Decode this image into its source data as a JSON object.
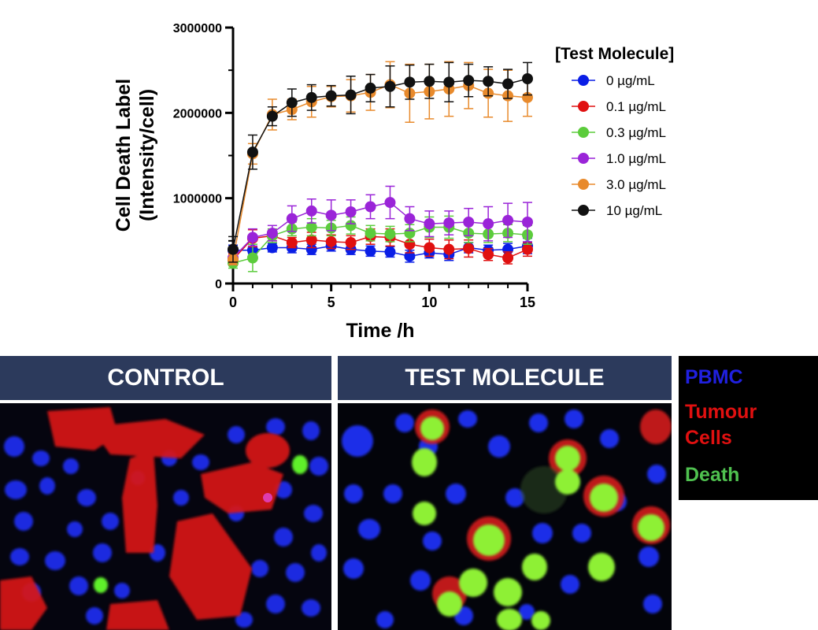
{
  "chart_data": {
    "type": "line",
    "xlabel": "Time /h",
    "ylabel_line1": "Cell Death Label",
    "ylabel_line2": "(Intensity/cell)",
    "xlim": [
      0,
      15
    ],
    "ylim": [
      0,
      3000000
    ],
    "xticks": [
      0,
      5,
      10,
      15
    ],
    "yticks": [
      0,
      1000000,
      2000000,
      3000000
    ],
    "legend_title": "[Test Molecule]",
    "legend_position": "right",
    "grid": false,
    "x": [
      0,
      1,
      2,
      3,
      4,
      5,
      6,
      7,
      8,
      9,
      10,
      11,
      12,
      13,
      14,
      15
    ],
    "series": [
      {
        "name": "0 µg/mL",
        "color": "#0a1ee6",
        "values": [
          390000,
          390000,
          420000,
          420000,
          400000,
          440000,
          400000,
          380000,
          370000,
          320000,
          360000,
          340000,
          420000,
          390000,
          400000,
          440000
        ],
        "errors": [
          60000,
          40000,
          50000,
          60000,
          60000,
          60000,
          60000,
          60000,
          60000,
          70000,
          60000,
          70000,
          60000,
          60000,
          70000,
          90000
        ]
      },
      {
        "name": "0.1 µg/mL",
        "color": "#e01010",
        "values": [
          280000,
          530000,
          560000,
          480000,
          510000,
          490000,
          480000,
          550000,
          540000,
          460000,
          420000,
          400000,
          410000,
          340000,
          300000,
          400000
        ],
        "errors": [
          70000,
          100000,
          60000,
          60000,
          90000,
          80000,
          80000,
          90000,
          100000,
          100000,
          100000,
          110000,
          100000,
          70000,
          70000,
          80000
        ]
      },
      {
        "name": "0.3 µg/mL",
        "color": "#5ccc3c",
        "values": [
          240000,
          300000,
          560000,
          640000,
          660000,
          650000,
          680000,
          590000,
          580000,
          590000,
          660000,
          660000,
          590000,
          580000,
          590000,
          570000
        ],
        "errors": [
          60000,
          160000,
          80000,
          80000,
          100000,
          90000,
          100000,
          90000,
          90000,
          100000,
          120000,
          130000,
          110000,
          100000,
          100000,
          110000
        ]
      },
      {
        "name": "1.0 µg/mL",
        "color": "#9a24d8",
        "values": [
          300000,
          540000,
          590000,
          760000,
          850000,
          800000,
          840000,
          900000,
          950000,
          760000,
          700000,
          710000,
          720000,
          700000,
          740000,
          720000
        ],
        "errors": [
          80000,
          100000,
          90000,
          150000,
          140000,
          180000,
          140000,
          140000,
          190000,
          140000,
          150000,
          140000,
          160000,
          200000,
          200000,
          230000
        ]
      },
      {
        "name": "3.0 µg/mL",
        "color": "#e88a2c",
        "values": [
          280000,
          1520000,
          1980000,
          2040000,
          2130000,
          2190000,
          2200000,
          2240000,
          2330000,
          2230000,
          2250000,
          2280000,
          2320000,
          2230000,
          2200000,
          2180000
        ],
        "errors": [
          60000,
          120000,
          180000,
          120000,
          180000,
          120000,
          190000,
          210000,
          270000,
          340000,
          320000,
          320000,
          270000,
          280000,
          300000,
          220000
        ]
      },
      {
        "name": "10 µg/mL",
        "color": "#111111",
        "values": [
          400000,
          1540000,
          1960000,
          2120000,
          2180000,
          2200000,
          2210000,
          2290000,
          2310000,
          2360000,
          2370000,
          2360000,
          2380000,
          2370000,
          2340000,
          2400000
        ],
        "errors": [
          150000,
          200000,
          110000,
          160000,
          150000,
          120000,
          220000,
          160000,
          240000,
          200000,
          200000,
          230000,
          190000,
          170000,
          170000,
          190000
        ]
      }
    ]
  },
  "panels": {
    "control_label": "CONTROL",
    "test_label": "TEST MOLECULE"
  },
  "key": {
    "pbmc": "PBMC",
    "tumour_line1": "Tumour",
    "tumour_line2": "Cells",
    "death": "Death",
    "pbmc_color": "#2020e0",
    "tumour_color": "#e01010",
    "death_color": "#4fc14f"
  }
}
